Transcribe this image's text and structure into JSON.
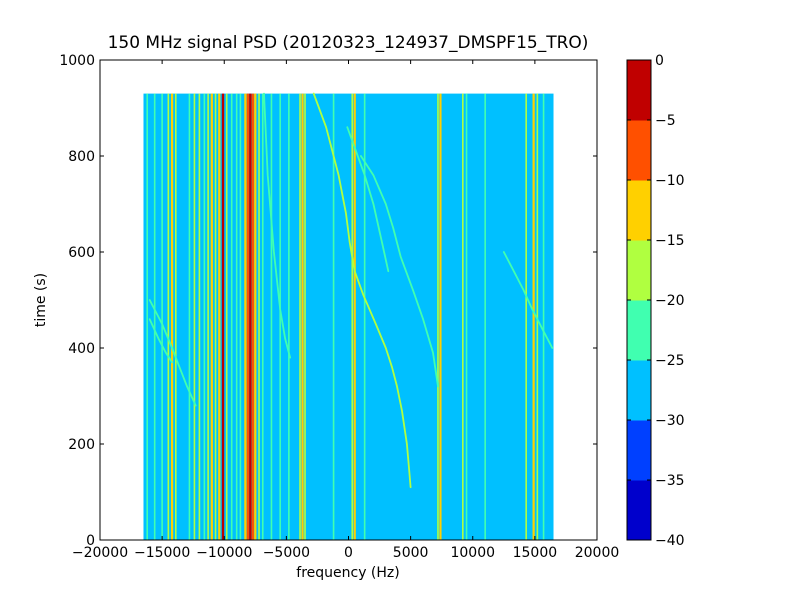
{
  "chart_data": {
    "type": "heatmap",
    "title": "150 MHz signal PSD (20120323_124937_DMSPF15_TRO)",
    "xlabel": "frequency (Hz)",
    "ylabel": "time (s)",
    "xlim": [
      -20000,
      20000
    ],
    "ylim": [
      0,
      1000
    ],
    "xticks": [
      -20000,
      -15000,
      -10000,
      -5000,
      0,
      5000,
      10000,
      15000,
      20000
    ],
    "xtick_labels": [
      "−20000",
      "−15000",
      "−10000",
      "−5000",
      "0",
      "5000",
      "10000",
      "15000",
      "20000"
    ],
    "yticks": [
      0,
      200,
      400,
      600,
      800,
      1000
    ],
    "ytick_labels": [
      "0",
      "200",
      "400",
      "600",
      "800",
      "1000"
    ],
    "data_extent": {
      "x": [
        -16500,
        16500
      ],
      "y": [
        0,
        930
      ]
    },
    "background_level": -27.5,
    "grid": false,
    "colorbar": {
      "levels": [
        0,
        -5,
        -10,
        -15,
        -20,
        -25,
        -30,
        -35,
        -40
      ],
      "tick_labels": [
        "0",
        "−5",
        "−10",
        "−15",
        "−20",
        "−25",
        "−30",
        "−35",
        "−40"
      ],
      "colors": [
        "#0000cc",
        "#0040ff",
        "#00c0ff",
        "#40ffb0",
        "#b0ff40",
        "#ffd000",
        "#ff5000",
        "#c00000"
      ]
    },
    "vertical_lines": [
      {
        "f": -16200,
        "level": -22
      },
      {
        "f": -15600,
        "level": -22
      },
      {
        "f": -15000,
        "level": -22
      },
      {
        "f": -14500,
        "level": -17
      },
      {
        "f": -14200,
        "level": -12
      },
      {
        "f": -13900,
        "level": -17
      },
      {
        "f": -12800,
        "level": -22
      },
      {
        "f": -12400,
        "level": -17
      },
      {
        "f": -12000,
        "level": -17
      },
      {
        "f": -11600,
        "level": -22
      },
      {
        "f": -11300,
        "level": -17
      },
      {
        "f": -11000,
        "level": -12
      },
      {
        "f": -10700,
        "level": -17
      },
      {
        "f": -10400,
        "level": -12
      },
      {
        "f": -10100,
        "level": -2
      },
      {
        "f": -9800,
        "level": -17
      },
      {
        "f": -9400,
        "level": -22
      },
      {
        "f": -9000,
        "level": -22
      },
      {
        "f": -8700,
        "level": -22
      },
      {
        "f": -8300,
        "level": -12
      },
      {
        "f": -8100,
        "level": -7
      },
      {
        "f": -7900,
        "level": -2
      },
      {
        "f": -7700,
        "level": -7
      },
      {
        "f": -7500,
        "level": -12
      },
      {
        "f": -7200,
        "level": -17
      },
      {
        "f": -6900,
        "level": -22
      },
      {
        "f": -6200,
        "level": -22
      },
      {
        "f": -5500,
        "level": -22
      },
      {
        "f": -4800,
        "level": -22
      },
      {
        "f": -3900,
        "level": -17
      },
      {
        "f": -3700,
        "level": -12
      },
      {
        "f": -3500,
        "level": -17
      },
      {
        "f": -1200,
        "level": -22
      },
      {
        "f": 300,
        "level": -17
      },
      {
        "f": 500,
        "level": -12
      },
      {
        "f": 1300,
        "level": -22
      },
      {
        "f": 7200,
        "level": -17
      },
      {
        "f": 7400,
        "level": -12
      },
      {
        "f": 9200,
        "level": -17
      },
      {
        "f": 9500,
        "level": -22
      },
      {
        "f": 11000,
        "level": -22
      },
      {
        "f": 14300,
        "level": -17
      },
      {
        "f": 14900,
        "level": -12
      },
      {
        "f": 15200,
        "level": -17
      },
      {
        "f": 15700,
        "level": -22
      }
    ],
    "curves": [
      {
        "level": -17,
        "points": [
          [
            -2800,
            930
          ],
          [
            -1800,
            860
          ],
          [
            -800,
            760
          ],
          [
            -200,
            680
          ],
          [
            100,
            620
          ],
          [
            500,
            560
          ],
          [
            1200,
            510
          ],
          [
            2200,
            450
          ],
          [
            3000,
            400
          ],
          [
            3500,
            360
          ],
          [
            3900,
            320
          ],
          [
            4300,
            270
          ],
          [
            4700,
            200
          ],
          [
            4900,
            140
          ],
          [
            5000,
            110
          ]
        ]
      },
      {
        "level": -22,
        "points": [
          [
            -100,
            860
          ],
          [
            600,
            810
          ],
          [
            1300,
            760
          ],
          [
            2000,
            700
          ],
          [
            2700,
            620
          ],
          [
            3200,
            560
          ]
        ]
      },
      {
        "level": -22,
        "points": [
          [
            1000,
            800
          ],
          [
            2000,
            760
          ],
          [
            3000,
            700
          ],
          [
            3600,
            650
          ],
          [
            4200,
            590
          ],
          [
            5200,
            520
          ],
          [
            6000,
            460
          ],
          [
            6800,
            390
          ],
          [
            7200,
            320
          ]
        ]
      },
      {
        "level": -22,
        "points": [
          [
            -16000,
            500
          ],
          [
            -15000,
            450
          ],
          [
            -14200,
            400
          ],
          [
            -13600,
            360
          ],
          [
            -13000,
            320
          ],
          [
            -12300,
            280
          ]
        ]
      },
      {
        "level": -22,
        "points": [
          [
            -6800,
            930
          ],
          [
            -6500,
            760
          ],
          [
            -6000,
            600
          ],
          [
            -5500,
            480
          ],
          [
            -5100,
            420
          ],
          [
            -4700,
            380
          ]
        ]
      },
      {
        "level": -22,
        "points": [
          [
            12500,
            600
          ],
          [
            13300,
            560
          ],
          [
            14100,
            520
          ],
          [
            14800,
            480
          ],
          [
            15600,
            440
          ],
          [
            16400,
            400
          ]
        ]
      },
      {
        "level": -22,
        "points": [
          [
            -16000,
            460
          ],
          [
            -15300,
            420
          ],
          [
            -14700,
            390
          ],
          [
            -14200,
            370
          ]
        ]
      }
    ]
  }
}
